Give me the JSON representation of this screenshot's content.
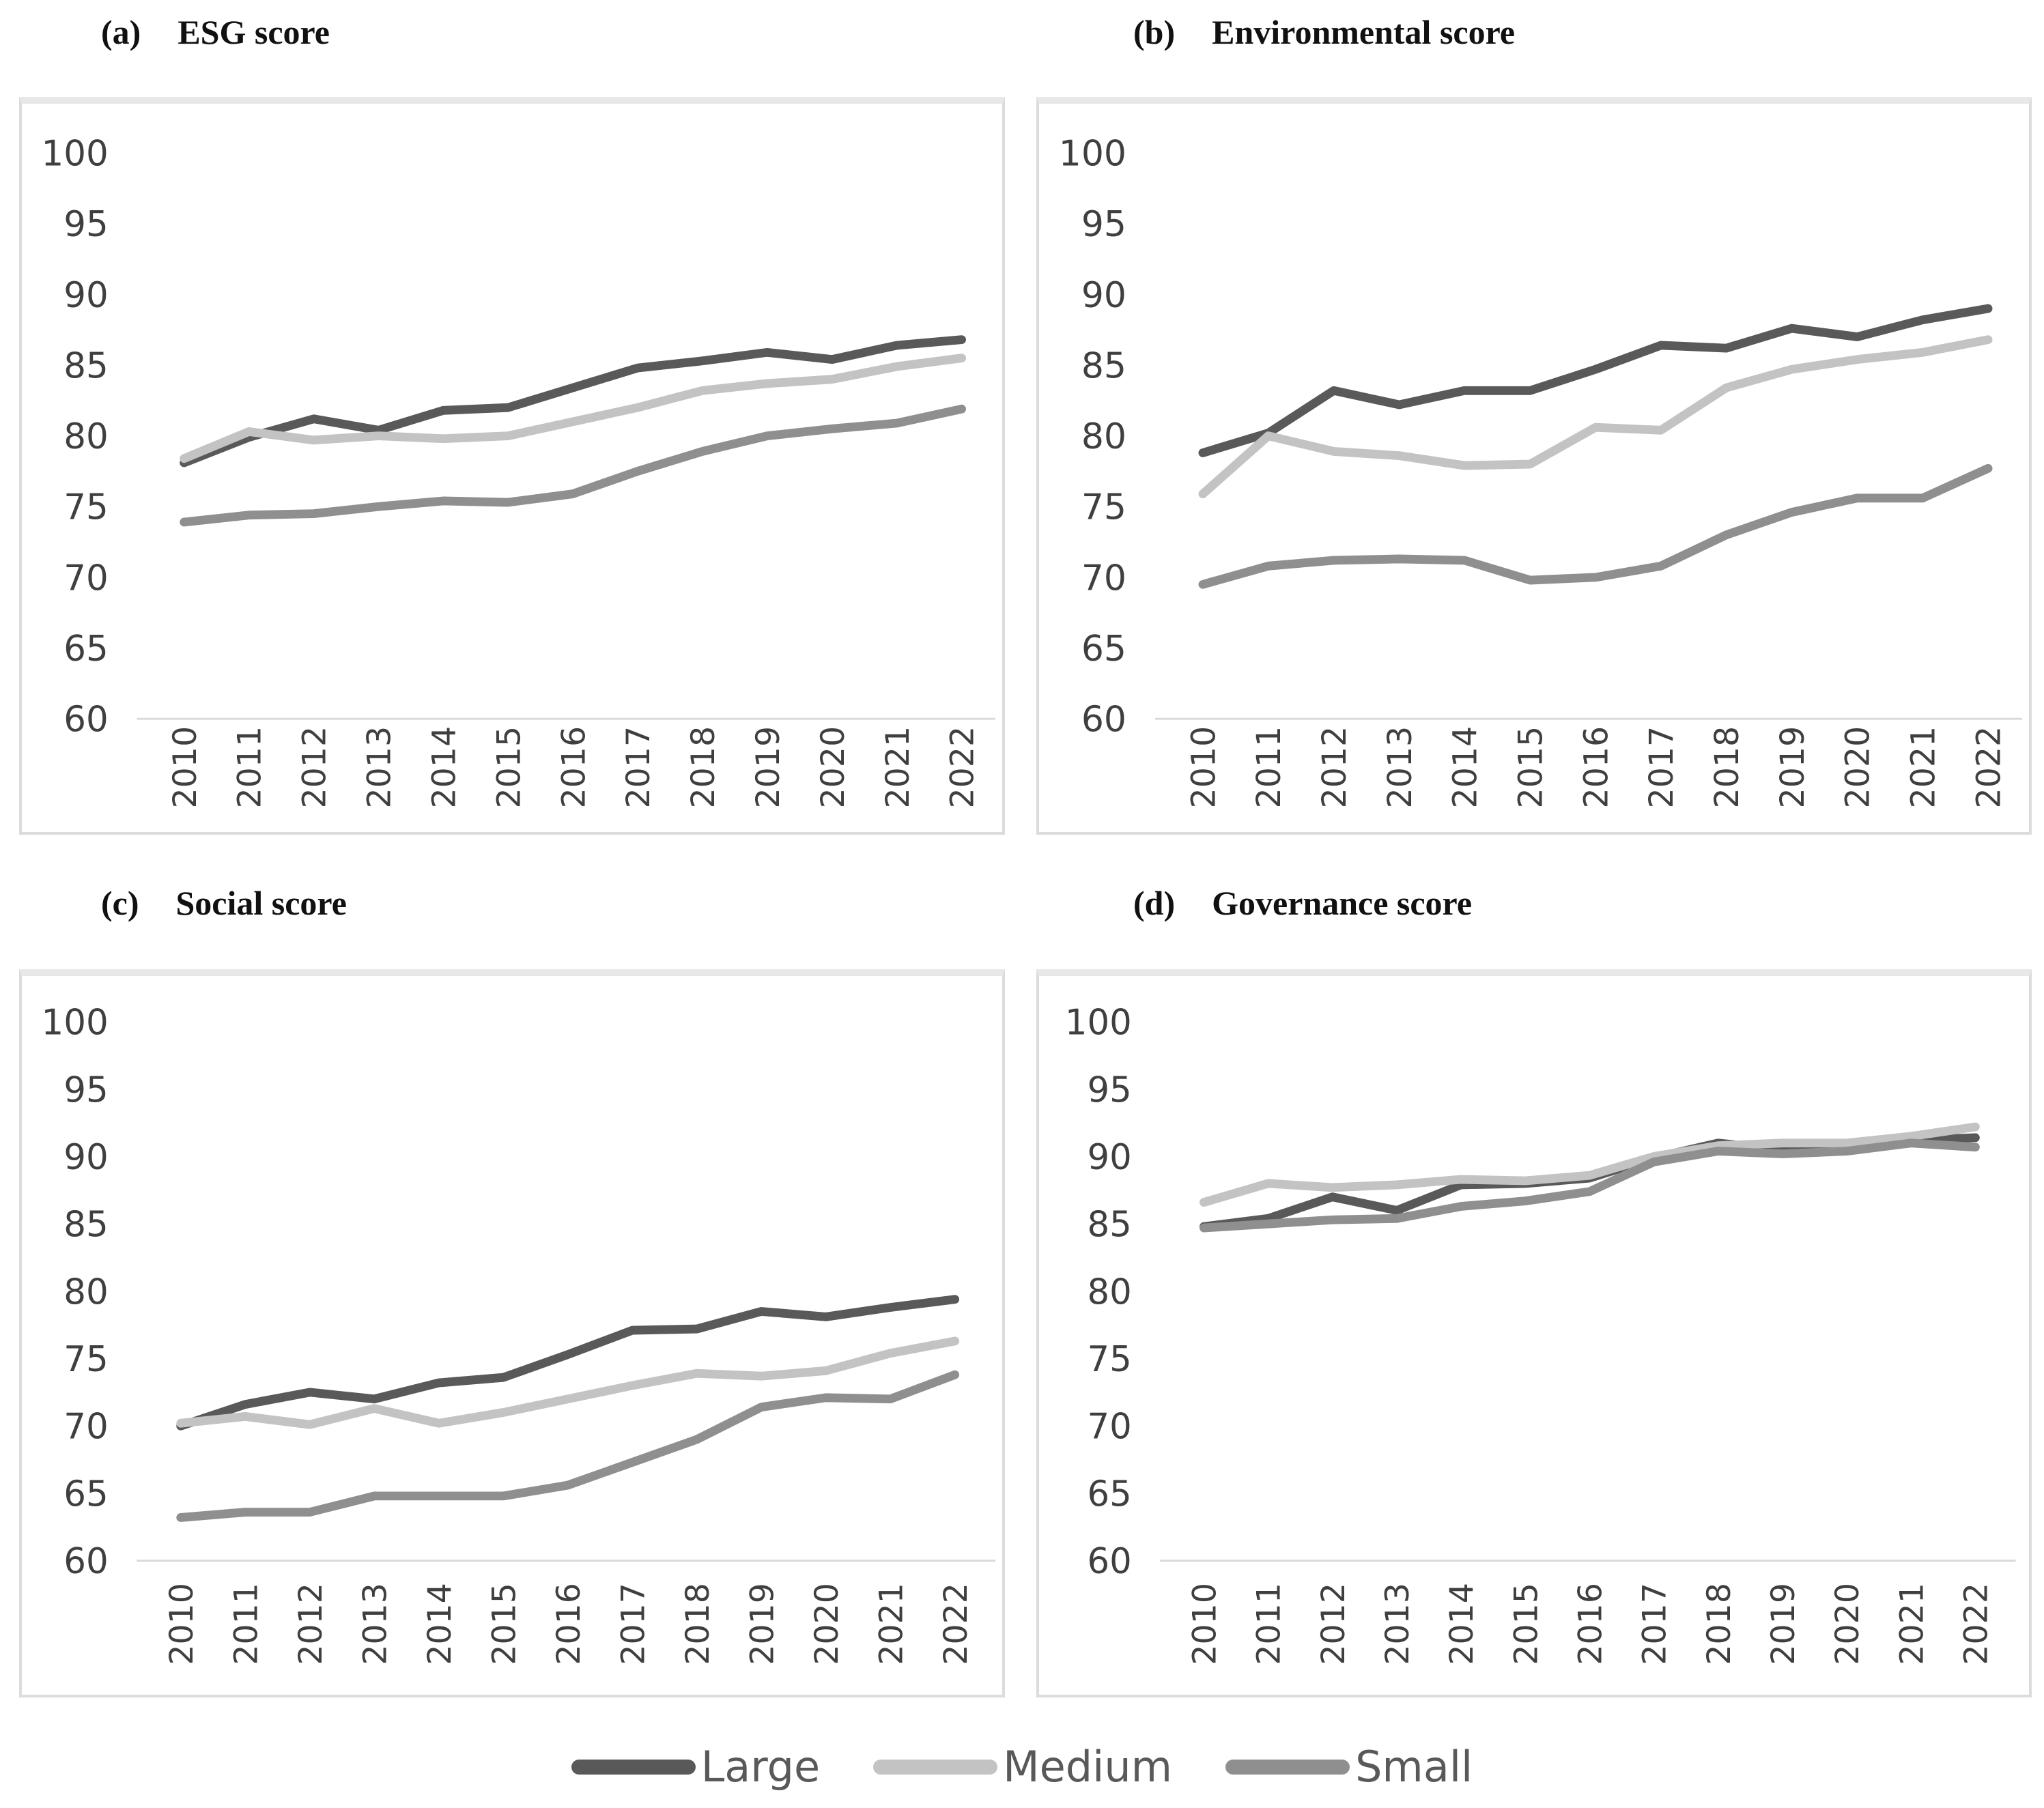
{
  "page": {
    "background": "#ffffff"
  },
  "axis": {
    "ymin": 60,
    "ymax": 100,
    "ytick_step": 5,
    "ytick_labels": [
      "100",
      "95",
      "90",
      "85",
      "80",
      "75",
      "70",
      "65",
      "60"
    ],
    "years": [
      "2010",
      "2011",
      "2012",
      "2013",
      "2014",
      "2015",
      "2016",
      "2017",
      "2018",
      "2019",
      "2020",
      "2021",
      "2022"
    ]
  },
  "style": {
    "series_colors": {
      "Large": "#595959",
      "Medium": "#c3c3c3",
      "Small": "#8f8f8f"
    },
    "axis_text_color": "#3f3f3f",
    "baseline_color": "#d9d9d9",
    "line_width": 13
  },
  "legend": {
    "items": [
      {
        "label": "Large",
        "color": "#595959"
      },
      {
        "label": "Medium",
        "color": "#c3c3c3"
      },
      {
        "label": "Small",
        "color": "#8f8f8f"
      }
    ]
  },
  "chart_data": [
    {
      "id": "a",
      "panel_label": "(a)",
      "title": "ESG score",
      "type": "line",
      "categories": [
        "2010",
        "2011",
        "2012",
        "2013",
        "2014",
        "2015",
        "2016",
        "2017",
        "2018",
        "2019",
        "2020",
        "2021",
        "2022"
      ],
      "ylim": [
        60,
        100
      ],
      "grid": false,
      "legend_position": "bottom-shared",
      "series": [
        {
          "name": "Large",
          "values": [
            78.1,
            79.9,
            81.2,
            80.4,
            81.8,
            82.0,
            83.4,
            84.8,
            85.3,
            85.9,
            85.4,
            86.4,
            86.8
          ]
        },
        {
          "name": "Medium",
          "values": [
            78.4,
            80.3,
            79.7,
            80.0,
            79.8,
            80.0,
            81.0,
            82.0,
            83.2,
            83.7,
            84.0,
            84.9,
            85.5
          ]
        },
        {
          "name": "Small",
          "values": [
            73.9,
            74.4,
            74.5,
            75.0,
            75.4,
            75.3,
            75.9,
            77.5,
            78.9,
            80.0,
            80.5,
            80.9,
            81.9
          ]
        }
      ]
    },
    {
      "id": "b",
      "panel_label": "(b)",
      "title": "Environmental score",
      "type": "line",
      "categories": [
        "2010",
        "2011",
        "2012",
        "2013",
        "2014",
        "2015",
        "2016",
        "2017",
        "2018",
        "2019",
        "2020",
        "2021",
        "2022"
      ],
      "ylim": [
        60,
        100
      ],
      "grid": false,
      "legend_position": "bottom-shared",
      "series": [
        {
          "name": "Large",
          "values": [
            78.8,
            80.2,
            83.2,
            82.2,
            83.2,
            83.2,
            84.7,
            86.4,
            86.2,
            87.6,
            87.0,
            88.2,
            89.0
          ]
        },
        {
          "name": "Medium",
          "values": [
            75.9,
            80.0,
            78.9,
            78.6,
            77.9,
            78.0,
            80.6,
            80.4,
            83.4,
            84.7,
            85.4,
            85.9,
            86.8
          ]
        },
        {
          "name": "Small",
          "values": [
            69.5,
            70.8,
            71.2,
            71.3,
            71.2,
            69.8,
            70.0,
            70.8,
            73.0,
            74.6,
            75.6,
            75.6,
            77.7
          ]
        }
      ]
    },
    {
      "id": "c",
      "panel_label": "(c)",
      "title": "Social score",
      "type": "line",
      "categories": [
        "2010",
        "2011",
        "2012",
        "2013",
        "2014",
        "2015",
        "2016",
        "2017",
        "2018",
        "2019",
        "2020",
        "2021",
        "2022"
      ],
      "ylim": [
        60,
        100
      ],
      "grid": false,
      "legend_position": "bottom-shared",
      "series": [
        {
          "name": "Large",
          "values": [
            70.0,
            71.6,
            72.5,
            72.0,
            73.2,
            73.6,
            75.3,
            77.1,
            77.2,
            78.5,
            78.1,
            78.8,
            79.4
          ]
        },
        {
          "name": "Medium",
          "values": [
            70.2,
            70.7,
            70.1,
            71.3,
            70.2,
            71.0,
            72.0,
            73.0,
            73.9,
            73.7,
            74.1,
            75.4,
            76.3
          ]
        },
        {
          "name": "Small",
          "values": [
            63.2,
            63.6,
            63.6,
            64.8,
            64.8,
            64.8,
            65.6,
            67.3,
            69.0,
            71.4,
            72.1,
            72.0,
            73.8
          ]
        }
      ]
    },
    {
      "id": "d",
      "panel_label": "(d)",
      "title": "Governance score",
      "type": "line",
      "categories": [
        "2010",
        "2011",
        "2012",
        "2013",
        "2014",
        "2015",
        "2016",
        "2017",
        "2018",
        "2019",
        "2020",
        "2021",
        "2022"
      ],
      "ylim": [
        60,
        100
      ],
      "grid": false,
      "legend_position": "bottom-shared",
      "series": [
        {
          "name": "Large",
          "values": [
            84.8,
            85.4,
            87.0,
            86.0,
            87.9,
            88.0,
            88.4,
            89.9,
            91.0,
            90.5,
            90.6,
            91.2,
            91.4
          ]
        },
        {
          "name": "Medium",
          "values": [
            86.6,
            88.0,
            87.7,
            87.9,
            88.3,
            88.2,
            88.6,
            90.0,
            90.8,
            91.0,
            91.0,
            91.5,
            92.2
          ]
        },
        {
          "name": "Small",
          "values": [
            84.7,
            85.0,
            85.3,
            85.4,
            86.3,
            86.7,
            87.4,
            89.6,
            90.4,
            90.2,
            90.4,
            91.0,
            90.7
          ]
        }
      ]
    }
  ]
}
